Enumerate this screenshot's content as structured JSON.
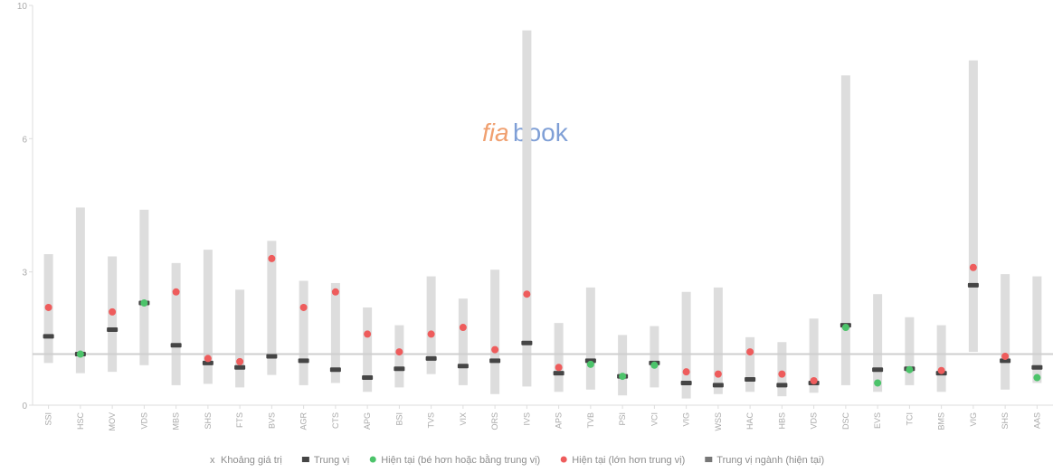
{
  "watermark": {
    "part1": "fia",
    "part2": "book"
  },
  "legend": [
    {
      "key": "range",
      "label": "Khoảng giá trị",
      "color": "#dddddd",
      "symbol": "x"
    },
    {
      "key": "median",
      "label": "Trung vị",
      "color": "#454545"
    },
    {
      "key": "cur_low",
      "label": "Hiện tại (bé hơn hoặc bằng trung vị)",
      "color": "#4cc36a"
    },
    {
      "key": "cur_high",
      "label": "Hiện tại (lớn hơn trung vị)",
      "color": "#ee5c5c"
    },
    {
      "key": "industry",
      "label": "Trung vị ngành (hiện tại)",
      "color": "#777777"
    }
  ],
  "colors": {
    "range": "#dddddd",
    "median": "#454545",
    "cur_low": "#4cc36a",
    "cur_high": "#ee5c5c",
    "industry_line": "#cfcfcf",
    "axis": "#dddddd"
  },
  "chart_data": {
    "type": "range",
    "yticks": [
      0,
      3,
      6,
      10
    ],
    "ylim": [
      0,
      10
    ],
    "industry_median": 1.15,
    "categories": [
      "SSI",
      "HSC",
      "MOV",
      "VDS",
      "MBS",
      "SHS",
      "FTS",
      "BVS",
      "AGR",
      "CTS",
      "APG",
      "BSI",
      "TVS",
      "VIX",
      "ORS",
      "IVS",
      "APS",
      "TVB",
      "PSI",
      "VCI",
      "VIG",
      "WSS",
      "HAC",
      "HBS",
      "VDS",
      "DSC",
      "EVS",
      "TCI",
      "BMS",
      "VIG",
      "SHS",
      "AAS"
    ],
    "min": [
      0.95,
      0.72,
      0.75,
      0.9,
      0.45,
      0.48,
      0.4,
      0.68,
      0.45,
      0.5,
      0.3,
      0.4,
      0.7,
      0.45,
      0.25,
      0.42,
      0.3,
      0.35,
      0.22,
      0.4,
      0.15,
      0.25,
      0.3,
      0.2,
      0.28,
      0.45,
      0.3,
      0.45,
      0.3,
      1.2,
      0.35,
      0.5
    ],
    "max": [
      3.4,
      4.45,
      3.35,
      4.4,
      3.2,
      3.5,
      2.6,
      3.7,
      2.8,
      2.75,
      2.2,
      1.8,
      2.9,
      2.4,
      3.05,
      9.25,
      1.85,
      2.65,
      1.58,
      1.78,
      2.55,
      2.65,
      1.53,
      1.42,
      1.95,
      7.9,
      2.5,
      1.98,
      1.8,
      8.35,
      2.95,
      2.9
    ],
    "median": [
      1.55,
      1.15,
      1.7,
      2.3,
      1.35,
      0.95,
      0.85,
      1.1,
      1.0,
      0.8,
      0.62,
      0.82,
      1.05,
      0.88,
      1.0,
      1.4,
      0.72,
      1.0,
      0.65,
      0.95,
      0.5,
      0.45,
      0.58,
      0.45,
      0.5,
      1.8,
      0.8,
      0.82,
      0.72,
      2.7,
      1.0,
      0.85
    ],
    "current": [
      2.2,
      1.15,
      2.1,
      2.3,
      2.55,
      1.05,
      0.98,
      3.3,
      2.2,
      2.55,
      1.6,
      1.2,
      1.6,
      1.75,
      1.25,
      2.5,
      0.85,
      0.92,
      0.65,
      0.9,
      0.75,
      0.7,
      1.2,
      0.7,
      0.55,
      1.75,
      0.5,
      0.8,
      0.78,
      3.1,
      1.1,
      0.62
    ]
  }
}
